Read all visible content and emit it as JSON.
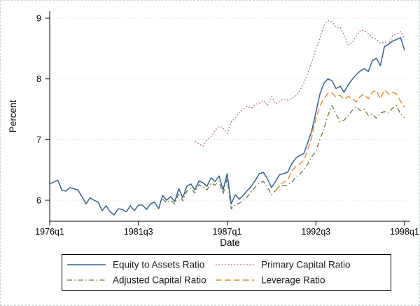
{
  "chart_data": {
    "type": "line",
    "title": "",
    "xlabel": "Date",
    "ylabel": "Percent",
    "x_start": "1976q1",
    "x_end": "1998q1",
    "x_frequency": "quarterly",
    "n_quarters": 89,
    "x_ticks": [
      "1976q1",
      "1981q3",
      "1987q1",
      "1992q3",
      "1998q1"
    ],
    "x_tick_indices": [
      0,
      22,
      44,
      66,
      88
    ],
    "y_ticks": [
      "9",
      "8",
      "7",
      "6"
    ],
    "y_tick_values": [
      9,
      8,
      7,
      6
    ],
    "ylim": [
      5.65,
      9.12
    ],
    "grid": "horizontal-dotted",
    "grid_color": "#d3e3e2",
    "legend_position": "bottom-box",
    "series": [
      {
        "name": "Equity to Assets Ratio",
        "color": "#36618e",
        "style": "solid",
        "start_date": "1976q1",
        "start_index": 0,
        "values": [
          6.27,
          6.3,
          6.33,
          6.17,
          6.15,
          6.21,
          6.19,
          6.17,
          6.06,
          5.94,
          6.04,
          6.0,
          5.97,
          5.83,
          5.91,
          5.81,
          5.76,
          5.86,
          5.85,
          5.81,
          5.91,
          5.83,
          5.92,
          5.92,
          5.85,
          5.94,
          5.97,
          5.86,
          6.08,
          6.0,
          6.06,
          5.98,
          6.19,
          6.04,
          6.23,
          6.27,
          6.17,
          6.32,
          6.29,
          6.23,
          6.37,
          6.31,
          6.4,
          6.17,
          6.44,
          5.94,
          6.09,
          6.02,
          6.08,
          6.16,
          6.23,
          6.33,
          6.44,
          6.46,
          6.35,
          6.21,
          6.31,
          6.42,
          6.44,
          6.46,
          6.6,
          6.69,
          6.74,
          6.77,
          6.95,
          7.15,
          7.45,
          7.75,
          7.93,
          8.0,
          7.97,
          7.84,
          7.88,
          7.78,
          7.9,
          7.99,
          8.07,
          8.13,
          8.17,
          8.12,
          8.3,
          8.34,
          8.22,
          8.53,
          8.57,
          8.62,
          8.65,
          8.68,
          8.47
        ]
      },
      {
        "name": "Primary Capital Ratio",
        "color": "#a86165",
        "style": "dotted",
        "start_date": "1985q1",
        "start_index": 36,
        "values": [
          6.97,
          6.93,
          6.89,
          7.0,
          7.05,
          7.15,
          7.22,
          7.19,
          7.1,
          7.29,
          7.35,
          7.45,
          7.5,
          7.55,
          7.52,
          7.58,
          7.6,
          7.65,
          7.56,
          7.71,
          7.59,
          7.63,
          7.67,
          7.65,
          7.68,
          7.72,
          7.8,
          7.93,
          8.1,
          8.28,
          8.5,
          8.67,
          8.88,
          8.96,
          8.94,
          8.85,
          8.85,
          8.73,
          8.56,
          8.6,
          8.7,
          8.79,
          8.8,
          8.75,
          8.68,
          8.65,
          8.59,
          8.61,
          8.57,
          8.71,
          8.74,
          8.78,
          8.67
        ]
      },
      {
        "name": "Adjusted Capital Ratio",
        "color": "#5e7e38",
        "style": "dash-dot",
        "start_date": "1983q1",
        "start_index": 28,
        "values": [
          6.02,
          5.96,
          6.0,
          5.94,
          6.12,
          5.99,
          6.15,
          6.2,
          6.12,
          6.26,
          6.22,
          6.17,
          6.28,
          6.25,
          6.31,
          6.1,
          6.36,
          5.86,
          5.92,
          5.95,
          6.0,
          6.06,
          6.14,
          6.22,
          6.29,
          6.31,
          6.22,
          6.09,
          6.16,
          6.23,
          6.24,
          6.25,
          6.3,
          6.37,
          6.43,
          6.5,
          6.6,
          6.72,
          6.81,
          7.0,
          7.18,
          7.4,
          7.56,
          7.42,
          7.29,
          7.32,
          7.39,
          7.48,
          7.54,
          7.48,
          7.5,
          7.4,
          7.42,
          7.35,
          7.44,
          7.46,
          7.44,
          7.52,
          7.56,
          7.42,
          7.36
        ]
      },
      {
        "name": "Leverage Ratio",
        "color": "#e5892f",
        "style": "dashed",
        "start_date": "1990q1",
        "start_index": 56,
        "values": [
          6.15,
          6.25,
          6.3,
          6.33,
          6.48,
          6.55,
          6.6,
          6.66,
          6.83,
          7.05,
          7.35,
          7.55,
          7.68,
          7.76,
          7.77,
          7.7,
          7.73,
          7.66,
          7.71,
          7.68,
          7.62,
          7.71,
          7.75,
          7.67,
          7.78,
          7.81,
          7.67,
          7.82,
          7.75,
          7.78,
          7.75,
          7.63,
          7.53
        ]
      }
    ]
  }
}
